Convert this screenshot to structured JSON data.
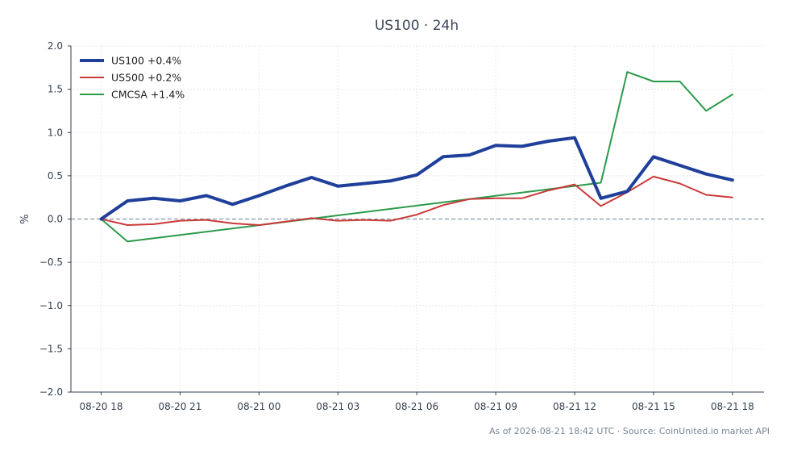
{
  "chart_data": {
    "type": "line",
    "title": "US100 · 24h",
    "xlabel": "",
    "ylabel": "%",
    "ylim": [
      -2.0,
      2.0
    ],
    "yticks": [
      2.0,
      1.5,
      1.0,
      0.5,
      0.0,
      -0.5,
      -1.0,
      -1.5,
      -2.0
    ],
    "ytick_labels": [
      "2.0",
      "1.5",
      "1.0",
      "0.5",
      "0.0",
      "−0.5",
      "−1.0",
      "−1.5",
      "−2.0"
    ],
    "xticks": [
      0,
      3,
      6,
      9,
      12,
      15,
      18,
      21,
      24
    ],
    "xtick_labels": [
      "08-20 18",
      "08-20 21",
      "08-21 00",
      "08-21 03",
      "08-21 06",
      "08-21 09",
      "08-21 12",
      "08-21 15",
      "08-21 18"
    ],
    "xlim": [
      -1.15,
      25.2
    ],
    "grid": true,
    "zero_line": true,
    "legend": "top-left",
    "series": [
      {
        "name": "US100 +0.4%",
        "color": "#1f3f9a",
        "x": [
          0,
          1,
          2,
          3,
          4,
          5,
          6,
          7,
          8,
          9,
          10,
          11,
          12,
          13,
          14,
          15,
          16,
          17,
          18,
          19,
          20,
          21,
          22,
          23,
          24
        ],
        "values": [
          0.0,
          0.21,
          0.24,
          0.21,
          0.27,
          0.17,
          0.27,
          0.38,
          0.48,
          0.38,
          0.41,
          0.44,
          0.51,
          0.72,
          0.74,
          0.85,
          0.84,
          0.9,
          0.94,
          0.24,
          0.32,
          0.72,
          0.62,
          0.52,
          0.45
        ]
      },
      {
        "name": "US500 +0.2%",
        "color": "#c93a38",
        "x": [
          0,
          1,
          2,
          3,
          4,
          5,
          6,
          7,
          8,
          9,
          10,
          11,
          12,
          13,
          14,
          15,
          16,
          17,
          18,
          19,
          20,
          21,
          22,
          23,
          24
        ],
        "values": [
          0.0,
          -0.07,
          -0.06,
          -0.02,
          -0.01,
          -0.05,
          -0.07,
          -0.03,
          0.01,
          -0.02,
          -0.01,
          -0.02,
          0.05,
          0.16,
          0.23,
          0.24,
          0.24,
          0.33,
          0.4,
          0.15,
          0.31,
          0.49,
          0.41,
          0.28,
          0.25
        ]
      },
      {
        "name": "CMCSA +1.4%",
        "color": "#2a9a4a",
        "x": [
          0,
          1,
          19,
          20,
          21,
          22,
          23,
          24
        ],
        "values": [
          0.0,
          -0.26,
          0.42,
          1.7,
          1.59,
          1.59,
          1.25,
          1.44
        ]
      }
    ],
    "footer": "As of 2026-08-21 18:42 UTC · Source: CoinUnited.io market API"
  }
}
